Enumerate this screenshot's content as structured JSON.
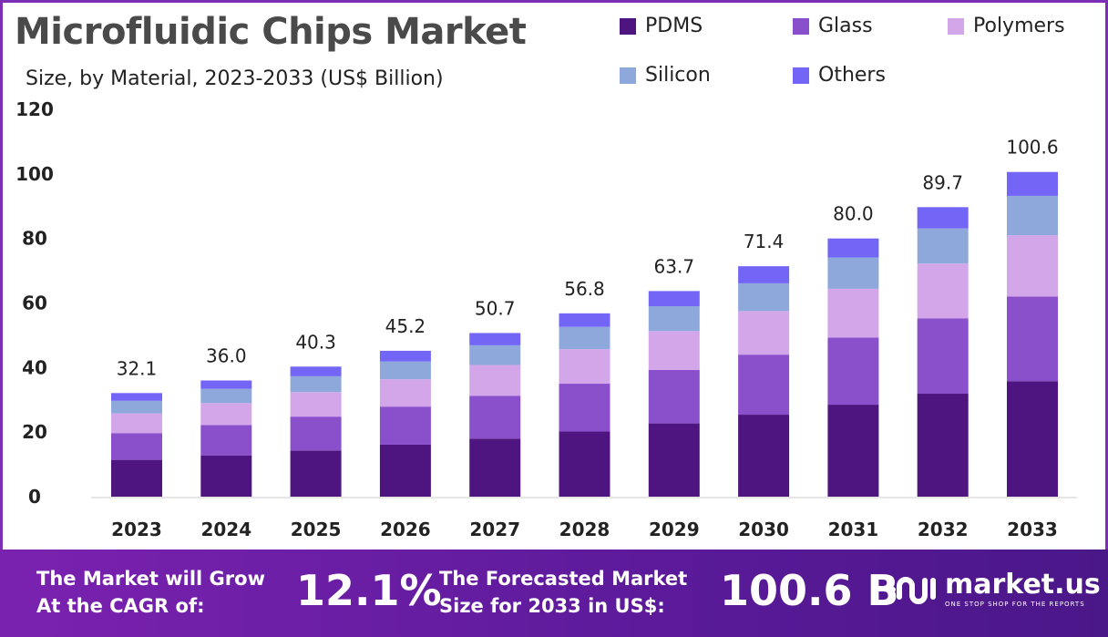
{
  "chart_data": {
    "type": "bar",
    "stacked": true,
    "title": "Microfluidic Chips Market",
    "subtitle": "Size, by Material, 2023-2033 (US$ Billion)",
    "categories": [
      "2023",
      "2024",
      "2025",
      "2026",
      "2027",
      "2028",
      "2029",
      "2030",
      "2031",
      "2032",
      "2033"
    ],
    "series": [
      {
        "name": "PDMS",
        "color": "#4e1580",
        "values": [
          11.4,
          12.8,
          14.3,
          16.1,
          18.0,
          20.2,
          22.7,
          25.4,
          28.5,
          31.9,
          35.8
        ]
      },
      {
        "name": "Glass",
        "color": "#8a4fcb",
        "values": [
          8.3,
          9.4,
          10.5,
          11.8,
          13.2,
          14.8,
          16.6,
          18.6,
          20.8,
          23.3,
          26.2
        ]
      },
      {
        "name": "Polymers",
        "color": "#d3a6ea",
        "values": [
          6.1,
          6.8,
          7.6,
          8.5,
          9.6,
          10.7,
          12.0,
          13.5,
          15.1,
          17.0,
          19.0
        ]
      },
      {
        "name": "Silicon",
        "color": "#8fa8dc",
        "values": [
          3.9,
          4.4,
          4.9,
          5.5,
          6.1,
          6.9,
          7.7,
          8.6,
          9.7,
          10.9,
          12.2
        ]
      },
      {
        "name": "Others",
        "color": "#7366f6",
        "values": [
          2.4,
          2.6,
          3.0,
          3.3,
          3.8,
          4.2,
          4.7,
          5.3,
          5.9,
          6.6,
          7.4
        ]
      }
    ],
    "totals": [
      "32.1",
      "36.0",
      "40.3",
      "45.2",
      "50.7",
      "56.8",
      "63.7",
      "71.4",
      "80.0",
      "89.7",
      "100.6"
    ],
    "yticks": [
      "0",
      "20",
      "40",
      "60",
      "80",
      "100",
      "120"
    ],
    "ylim": [
      0,
      120
    ],
    "grid": false,
    "legend": "top-right"
  },
  "footer": {
    "cagr_label_1": "The Market will Grow",
    "cagr_label_2": "At the CAGR of:",
    "cagr_value": "12.1%",
    "forecast_label_1": "The Forecasted Market",
    "forecast_label_2": "Size for 2033 in US$:",
    "forecast_value": "100.6 B",
    "logo_name": "market.us",
    "logo_tagline": "ONE STOP SHOP FOR THE REPORTS"
  }
}
